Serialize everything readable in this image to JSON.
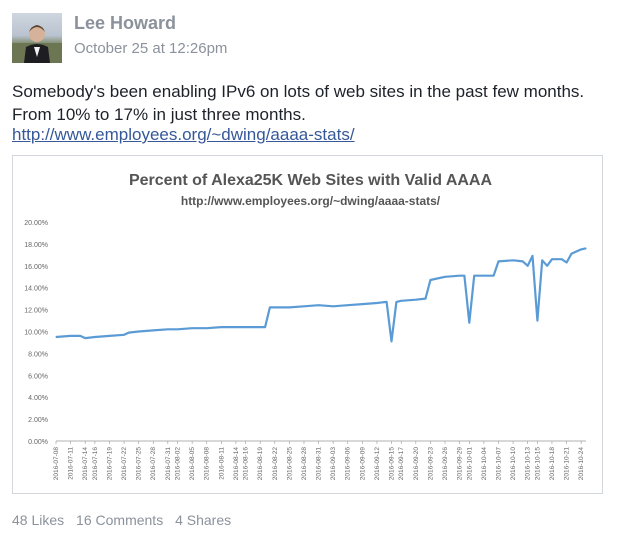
{
  "post": {
    "author": "Lee Howard",
    "timestamp": "October 25 at 12:26pm",
    "text": "Somebody's been enabling IPv6 on lots of web sites in the past few months. From 10% to 17% in just three months.",
    "link": "http://www.employees.org/~dwing/aaaa-stats/"
  },
  "stats": {
    "likes": "48 Likes",
    "comments": "16 Comments",
    "shares": "4 Shares"
  },
  "colors": {
    "series": "#5b9bd5",
    "link": "#365899",
    "meta": "#8b929c"
  },
  "chart_data": {
    "type": "line",
    "title": "Percent of Alexa25K Web Sites with Valid AAAA",
    "subtitle": "http://www.employees.org/~dwing/aaaa-stats/",
    "xlabel": "",
    "ylabel": "",
    "ylim": [
      0,
      20
    ],
    "y_ticks": [
      "0.00%",
      "2.00%",
      "4.00%",
      "6.00%",
      "8.00%",
      "10.00%",
      "12.00%",
      "14.00%",
      "16.00%",
      "18.00%",
      "20.00%"
    ],
    "grid": false,
    "x_tick_labels": [
      "2016-07-08",
      "2016-07-11",
      "2016-07-14",
      "2016-07-16",
      "2016-07-19",
      "2016-07-22",
      "2016-07-25",
      "2016-07-28",
      "2016-07-31",
      "2016-08-02",
      "2016-08-05",
      "2016-08-08",
      "2016-08-11",
      "2016-08-14",
      "2016-08-16",
      "2016-08-19",
      "2016-08-22",
      "2016-08-25",
      "2016-08-28",
      "2016-08-31",
      "2016-09-03",
      "2016-09-06",
      "2016-09-09",
      "2016-09-12",
      "2016-09-15",
      "2016-09-17",
      "2016-09-20",
      "2016-09-23",
      "2016-09-26",
      "2016-09-29",
      "2016-10-01",
      "2016-10-04",
      "2016-10-07",
      "2016-10-10",
      "2016-10-13",
      "2016-10-15",
      "2016-10-18",
      "2016-10-21",
      "2016-10-24"
    ],
    "series": [
      {
        "points": [
          [
            "2016-07-08",
            9.5
          ],
          [
            "2016-07-11",
            9.6
          ],
          [
            "2016-07-13",
            9.6
          ],
          [
            "2016-07-14",
            9.4
          ],
          [
            "2016-07-16",
            9.5
          ],
          [
            "2016-07-19",
            9.6
          ],
          [
            "2016-07-22",
            9.7
          ],
          [
            "2016-07-23",
            9.9
          ],
          [
            "2016-07-25",
            10.0
          ],
          [
            "2016-07-28",
            10.1
          ],
          [
            "2016-07-31",
            10.2
          ],
          [
            "2016-08-02",
            10.2
          ],
          [
            "2016-08-05",
            10.3
          ],
          [
            "2016-08-08",
            10.3
          ],
          [
            "2016-08-11",
            10.4
          ],
          [
            "2016-08-14",
            10.4
          ],
          [
            "2016-08-16",
            10.4
          ],
          [
            "2016-08-19",
            10.4
          ],
          [
            "2016-08-20",
            10.4
          ],
          [
            "2016-08-21",
            12.2
          ],
          [
            "2016-08-22",
            12.2
          ],
          [
            "2016-08-25",
            12.2
          ],
          [
            "2016-08-28",
            12.3
          ],
          [
            "2016-08-31",
            12.4
          ],
          [
            "2016-09-03",
            12.3
          ],
          [
            "2016-09-06",
            12.4
          ],
          [
            "2016-09-09",
            12.5
          ],
          [
            "2016-09-12",
            12.6
          ],
          [
            "2016-09-14",
            12.7
          ],
          [
            "2016-09-15",
            9.1
          ],
          [
            "2016-09-16",
            12.7
          ],
          [
            "2016-09-17",
            12.8
          ],
          [
            "2016-09-20",
            12.9
          ],
          [
            "2016-09-22",
            13.0
          ],
          [
            "2016-09-23",
            14.7
          ],
          [
            "2016-09-26",
            15.0
          ],
          [
            "2016-09-29",
            15.1
          ],
          [
            "2016-09-30",
            15.1
          ],
          [
            "2016-10-01",
            10.8
          ],
          [
            "2016-10-02",
            15.1
          ],
          [
            "2016-10-04",
            15.1
          ],
          [
            "2016-10-06",
            15.1
          ],
          [
            "2016-10-07",
            16.4
          ],
          [
            "2016-10-10",
            16.5
          ],
          [
            "2016-10-12",
            16.4
          ],
          [
            "2016-10-13",
            16.0
          ],
          [
            "2016-10-14",
            16.9
          ],
          [
            "2016-10-15",
            11.0
          ],
          [
            "2016-10-16",
            16.5
          ],
          [
            "2016-10-17",
            16.0
          ],
          [
            "2016-10-18",
            16.6
          ],
          [
            "2016-10-20",
            16.6
          ],
          [
            "2016-10-21",
            16.3
          ],
          [
            "2016-10-22",
            17.1
          ],
          [
            "2016-10-24",
            17.5
          ],
          [
            "2016-10-25",
            17.6
          ]
        ]
      }
    ]
  }
}
